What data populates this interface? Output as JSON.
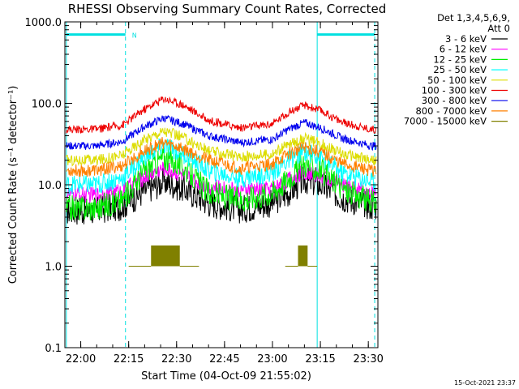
{
  "chart_data": {
    "type": "line",
    "title": "RHESSI Observing Summary Count Rates, Corrected",
    "xlabel": "Start Time (04-Oct-09 21:55:02)",
    "ylabel": "Corrected Count Rate (s⁻¹ detector⁻¹)",
    "yscale": "log",
    "ylim": [
      0.1,
      1000
    ],
    "xlim": [
      "21:55:02",
      "23:33:00"
    ],
    "x_ticks": [
      "22:00",
      "22:15",
      "22:30",
      "22:45",
      "23:00",
      "23:15",
      "23:30"
    ],
    "y_ticks": [
      "0.1",
      "1.0",
      "10.0",
      "100.0",
      "1000.0"
    ],
    "grid": false,
    "legend_position": "top-right",
    "legend_header": [
      "Det 1,3,4,5,6,9,",
      "Att 0"
    ],
    "timestamp": "15-Oct-2021 23:37",
    "night_markers": [
      "21:55:30",
      "22:14:00",
      "23:14:00",
      "23:32:00"
    ],
    "flag_bars": [
      {
        "start": "21:55:30",
        "end": "22:14:00",
        "value": 700,
        "label": "N"
      },
      {
        "start": "23:14:00",
        "end": "23:32:00",
        "value": 700,
        "label": ""
      }
    ],
    "x_sample_times": [
      "21:56",
      "22:05",
      "22:13",
      "22:20",
      "22:26",
      "22:32",
      "22:40",
      "22:50",
      "23:00",
      "23:05",
      "23:10",
      "23:15",
      "23:22",
      "23:31"
    ],
    "series": [
      {
        "name": "3 - 6 keV",
        "color": "#000000",
        "values": [
          4.8,
          4.8,
          5.5,
          8.5,
          11,
          9,
          6,
          5,
          6,
          8,
          11.5,
          10,
          7,
          5.5
        ]
      },
      {
        "name": "6 - 12 keV",
        "color": "#ff00ff",
        "values": [
          7.5,
          7.5,
          8.5,
          12.5,
          16,
          13,
          9.5,
          8.5,
          9,
          11.5,
          14.5,
          13,
          10,
          8
        ]
      },
      {
        "name": "12 - 25 keV",
        "color": "#00ee00",
        "values": [
          5.2,
          5.2,
          6.5,
          15,
          22,
          17,
          8,
          6.5,
          8,
          12,
          18,
          15,
          9,
          6
        ]
      },
      {
        "name": "25 - 50 keV",
        "color": "#00ffff",
        "values": [
          10,
          10,
          12,
          22,
          30,
          24,
          15,
          12,
          14,
          20,
          26,
          22,
          14,
          11
        ]
      },
      {
        "name": "50 - 100 keV",
        "color": "#dddd00",
        "values": [
          20,
          20,
          23,
          36,
          46,
          38,
          26,
          22,
          24,
          31,
          37,
          32,
          24,
          20
        ]
      },
      {
        "name": "100 - 300 keV",
        "color": "#ee0000",
        "values": [
          48,
          48,
          54,
          85,
          115,
          96,
          62,
          50,
          56,
          78,
          95,
          82,
          58,
          48
        ]
      },
      {
        "name": "300 - 800 keV",
        "color": "#0000ee",
        "values": [
          30,
          30,
          34,
          52,
          66,
          56,
          40,
          33,
          36,
          48,
          58,
          50,
          37,
          30
        ]
      },
      {
        "name": "800 - 7000 keV",
        "color": "#ff8000",
        "values": [
          15,
          15,
          17,
          26,
          33,
          28,
          20,
          16,
          18,
          24,
          29,
          25,
          18,
          15
        ]
      },
      {
        "name": "7000 - 15000 keV",
        "color": "#808000",
        "segments": [
          {
            "start": "22:15",
            "end": "22:22",
            "value": 1.0
          },
          {
            "start": "22:22",
            "end": "22:31",
            "value": 1.8
          },
          {
            "start": "22:31",
            "end": "22:37",
            "value": 1.0
          },
          {
            "start": "23:04",
            "end": "23:08",
            "value": 1.0
          },
          {
            "start": "23:08",
            "end": "23:11",
            "value": 1.8
          },
          {
            "start": "23:11",
            "end": "23:14",
            "value": 1.0
          }
        ]
      }
    ]
  }
}
